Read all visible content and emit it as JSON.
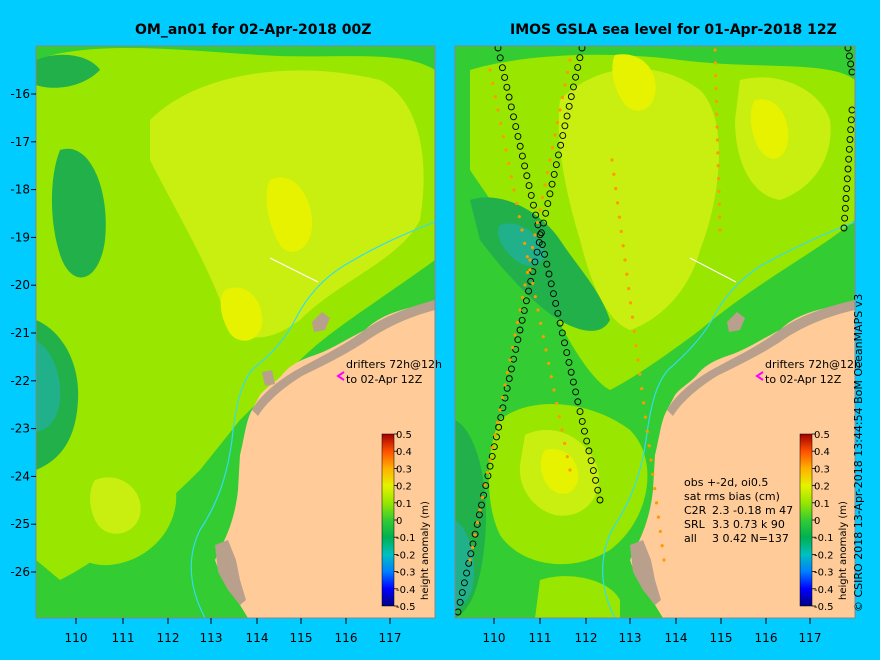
{
  "left_panel": {
    "title": "OM_an01 for 02-Apr-2018 00Z",
    "drifters_line1": "drifters 72h@12h",
    "drifters_line2": "to 02-Apr 12Z"
  },
  "right_panel": {
    "title": "IMOS GSLA sea level  for 01-Apr-2018 12Z",
    "drifters_line1": "drifters 72h@12h",
    "drifters_line2": "to 02-Apr 12Z",
    "stats": {
      "line1": "obs +-2d, oi0.5",
      "line2": "sat rms bias (cm)",
      "rows": [
        {
          "sat": "C2R",
          "values": "2.3 -0.18 m 47"
        },
        {
          "sat": "SRL",
          "values": "3.3 0.73 k 90"
        },
        {
          "sat": "all",
          "values": "3 0.42 N=137"
        }
      ]
    }
  },
  "x_ticks": [
    "110",
    "111",
    "112",
    "113",
    "114",
    "115",
    "116",
    "117"
  ],
  "y_ticks": [
    "-16",
    "-17",
    "-18",
    "-19",
    "-20",
    "-21",
    "-22",
    "-23",
    "-24",
    "-25",
    "-26"
  ],
  "colorbar": {
    "label": "height anomaly (m)",
    "ticks": [
      "0.5",
      "0.4",
      "0.3",
      "0.2",
      "0.1",
      "0",
      "-0.1",
      "-0.2",
      "-0.3",
      "-0.4",
      "-0.5"
    ]
  },
  "credit": "© CSIRO 2018  13-Apr-2018 13:44:54 BoM OceanMAPS v3",
  "colors": {
    "background": "#00ccff",
    "land": "#ffcc99",
    "coast_rock": "#b8a08c",
    "yellow_high": "#e6f200",
    "yellow_mid": "#c8ef10",
    "green_light": "#99e600",
    "green": "#33cc33",
    "green_dark": "#22b04a",
    "teal": "#20b08a",
    "drifter": "#ff00ff",
    "bathy_line": "#33ddee"
  }
}
